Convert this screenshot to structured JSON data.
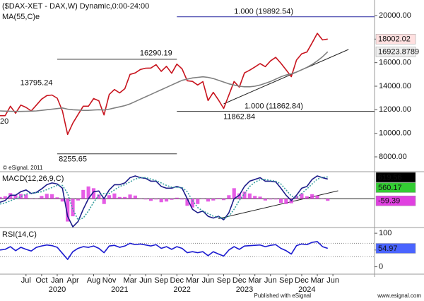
{
  "chart_data": [
    {
      "type": "line",
      "title": "($DAX-XET - DAX,W) Dynamic,0:00-24:00",
      "copyright": "© eSignal, 2011",
      "x": [
        "2019-02",
        "2019-03",
        "2019-04",
        "2019-05",
        "2019-06",
        "2019-07",
        "2019-08",
        "2019-09",
        "2019-10",
        "2019-11",
        "2019-12",
        "2020-01",
        "2020-02",
        "2020-03",
        "2020-04",
        "2020-05",
        "2020-06",
        "2020-07",
        "2020-08",
        "2020-09",
        "2020-10",
        "2020-11",
        "2020-12",
        "2021-01",
        "2021-02",
        "2021-03",
        "2021-04",
        "2021-05",
        "2021-06",
        "2021-07",
        "2021-08",
        "2021-09",
        "2021-10",
        "2021-11",
        "2021-12",
        "2022-01",
        "2022-02",
        "2022-03",
        "2022-04",
        "2022-05",
        "2022-06",
        "2022-07",
        "2022-08",
        "2022-09",
        "2022-10",
        "2022-11",
        "2022-12",
        "2023-01",
        "2023-02",
        "2023-03",
        "2023-04",
        "2023-05",
        "2023-06",
        "2023-07",
        "2023-08",
        "2023-09",
        "2023-10",
        "2023-11",
        "2023-12",
        "2024-01",
        "2024-02",
        "2024-03",
        "2024-04",
        "2024-05"
      ],
      "xlim": [
        "2019-02",
        "2025-02"
      ],
      "ylim": [
        6740,
        21320
      ],
      "yticks": [
        {
          "value": 8000,
          "label": "8000.00"
        },
        {
          "value": 10000,
          "label": "10000.00"
        },
        {
          "value": 12000,
          "label": "12000.00"
        },
        {
          "value": 14000,
          "label": "14000.00"
        },
        {
          "value": 16000,
          "label": "16000.00"
        },
        {
          "value": 18000,
          "label": "18000.00"
        },
        {
          "value": 20000,
          "label": "20000.00"
        }
      ],
      "grid": false,
      "series": [
        {
          "color": "#c8141e",
          "label_fill": "#ffe0e0",
          "values": [
            11500,
            11500,
            12300,
            11700,
            12400,
            12200,
            11900,
            12400,
            12900,
            13200,
            13250,
            12980,
            11900,
            9900,
            10860,
            11590,
            12300,
            12300,
            12950,
            12760,
            11560,
            13300,
            13720,
            13430,
            13790,
            15000,
            15130,
            15420,
            15530,
            15540,
            15830,
            15260,
            15690,
            15100,
            15880,
            15470,
            14460,
            14410,
            14100,
            14390,
            12780,
            13480,
            12830,
            12110,
            13250,
            14400,
            13920,
            15130,
            15360,
            15630,
            15920,
            15660,
            16150,
            16450,
            15950,
            15390,
            14810,
            16220,
            16750,
            16900,
            17680,
            18490,
            17930,
            18002.02
          ]
        },
        {
          "name": "MA(55,C)e",
          "color": "#808080",
          "label_fill": "#eeeeee",
          "values": [
            11900,
            11880,
            11870,
            11860,
            11860,
            11870,
            11880,
            11900,
            11950,
            12000,
            12050,
            12100,
            12150,
            12050,
            12000,
            11980,
            11950,
            11950,
            11980,
            12000,
            11980,
            12050,
            12150,
            12250,
            12350,
            12500,
            12700,
            12900,
            13100,
            13300,
            13500,
            13700,
            13900,
            14100,
            14300,
            14500,
            14600,
            14700,
            14750,
            14800,
            14750,
            14650,
            14500,
            14350,
            14200,
            14100,
            14000,
            13950,
            13950,
            14000,
            14100,
            14250,
            14400,
            14600,
            14800,
            14950,
            15050,
            15200,
            15400,
            15600,
            15850,
            16150,
            16500,
            16923.8789
          ]
        }
      ],
      "hlines": [
        {
          "value": 19892.54,
          "label": "1.000 (19892.54)",
          "x": [
            "2021-12",
            "2025-02"
          ],
          "color": "#2a2aa0",
          "label_x": "2022-11"
        },
        {
          "value": 11862.84,
          "label": "1.000 (11862.84)",
          "x": [
            "2021-12",
            "2025-02"
          ],
          "color": "#333333",
          "label_x": "2023-01"
        },
        {
          "value": 16290.19,
          "x": [
            "2020-01",
            "2021-12"
          ],
          "color": "#333333"
        },
        {
          "value": 8255.65,
          "x": [
            "2020-01",
            "2021-12"
          ],
          "color": "#333333"
        }
      ],
      "annotations": [
        {
          "label": "16290.19",
          "x": "2021-08",
          "y": 16290.19
        },
        {
          "label": "13795.24",
          "x": "2019-09",
          "y": 13795.24
        },
        {
          "label": "8255.65",
          "x": "2020-04",
          "y": 8255.65
        },
        {
          "label": "11862.84",
          "x": "2022-12",
          "y": 11862.84
        },
        {
          "label": "20",
          "x": "2019-02",
          "y": 10500
        }
      ],
      "trendlines": [
        {
          "x": [
            "2022-09",
            "2024-09"
          ],
          "y": [
            12500,
            17120
          ],
          "color": "#222222"
        }
      ]
    },
    {
      "type": "line",
      "title": "MACD(12,26,9,C)",
      "x": [
        "2019-02",
        "2019-03",
        "2019-04",
        "2019-05",
        "2019-06",
        "2019-07",
        "2019-08",
        "2019-09",
        "2019-10",
        "2019-11",
        "2019-12",
        "2020-01",
        "2020-02",
        "2020-03",
        "2020-04",
        "2020-05",
        "2020-06",
        "2020-07",
        "2020-08",
        "2020-09",
        "2020-10",
        "2020-11",
        "2020-12",
        "2021-01",
        "2021-02",
        "2021-03",
        "2021-04",
        "2021-05",
        "2021-06",
        "2021-07",
        "2021-08",
        "2021-09",
        "2021-10",
        "2021-11",
        "2021-12",
        "2022-01",
        "2022-02",
        "2022-03",
        "2022-04",
        "2022-05",
        "2022-06",
        "2022-07",
        "2022-08",
        "2022-09",
        "2022-10",
        "2022-11",
        "2022-12",
        "2023-01",
        "2023-02",
        "2023-03",
        "2023-04",
        "2023-05",
        "2023-06",
        "2023-07",
        "2023-08",
        "2023-09",
        "2023-10",
        "2023-11",
        "2023-12",
        "2024-01",
        "2024-02",
        "2024-03",
        "2024-04",
        "2024-05"
      ],
      "xlim": [
        "2019-02",
        "2025-02"
      ],
      "ylim": [
        -820,
        750
      ],
      "zero_line": 0,
      "series": [
        {
          "type": "bar",
          "color": "#e040e0",
          "label_fill": "#e040e0",
          "values": [
            50,
            70,
            160,
            100,
            140,
            120,
            -10,
            10,
            80,
            140,
            130,
            40,
            -80,
            -650,
            -500,
            -50,
            250,
            350,
            300,
            120,
            -150,
            100,
            150,
            50,
            50,
            120,
            90,
            0,
            -20,
            -60,
            -20,
            -100,
            -80,
            -30,
            30,
            -20,
            -200,
            -250,
            -150,
            0,
            -80,
            -50,
            20,
            -40,
            100,
            300,
            150,
            200,
            150,
            80,
            60,
            -50,
            -20,
            -20,
            -120,
            -150,
            -130,
            80,
            150,
            70,
            130,
            90,
            -10,
            -59.39
          ]
        },
        {
          "color": "#1c1c8a",
          "label_fill": "#33cc33",
          "values": [
            -100,
            -50,
            100,
            100,
            200,
            250,
            150,
            180,
            280,
            400,
            450,
            420,
            300,
            -500,
            -800,
            -650,
            -300,
            0,
            200,
            220,
            0,
            250,
            400,
            400,
            450,
            600,
            650,
            600,
            580,
            500,
            500,
            350,
            300,
            300,
            350,
            300,
            0,
            -300,
            -400,
            -350,
            -500,
            -550,
            -500,
            -600,
            -400,
            0,
            100,
            350,
            500,
            550,
            600,
            500,
            500,
            480,
            300,
            100,
            -50,
            100,
            300,
            350,
            550,
            650,
            600,
            560.17
          ]
        },
        {
          "color": "#3aa0a0",
          "dash": "2 2",
          "values": [
            -150,
            -120,
            -60,
            0,
            60,
            130,
            160,
            170,
            200,
            260,
            320,
            380,
            380,
            150,
            -300,
            -600,
            -550,
            -350,
            -100,
            100,
            150,
            150,
            250,
            350,
            400,
            480,
            560,
            600,
            600,
            560,
            520,
            450,
            380,
            330,
            320,
            320,
            200,
            -50,
            -250,
            -350,
            -420,
            -500,
            -520,
            -560,
            -500,
            -300,
            -50,
            150,
            350,
            470,
            540,
            550,
            520,
            500,
            420,
            250,
            80,
            20,
            150,
            280,
            420,
            560,
            610,
            619.56
          ]
        }
      ],
      "trendlines": [
        {
          "x": [
            "2022-08",
            "2024-07"
          ],
          "y": [
            -569,
            226
          ],
          "color": "#222222"
        }
      ]
    },
    {
      "type": "line",
      "title": "RSI(14,C)",
      "x": [
        "2019-02",
        "2019-03",
        "2019-04",
        "2019-05",
        "2019-06",
        "2019-07",
        "2019-08",
        "2019-09",
        "2019-10",
        "2019-11",
        "2019-12",
        "2020-01",
        "2020-02",
        "2020-03",
        "2020-04",
        "2020-05",
        "2020-06",
        "2020-07",
        "2020-08",
        "2020-09",
        "2020-10",
        "2020-11",
        "2020-12",
        "2021-01",
        "2021-02",
        "2021-03",
        "2021-04",
        "2021-05",
        "2021-06",
        "2021-07",
        "2021-08",
        "2021-09",
        "2021-10",
        "2021-11",
        "2021-12",
        "2022-01",
        "2022-02",
        "2022-03",
        "2022-04",
        "2022-05",
        "2022-06",
        "2022-07",
        "2022-08",
        "2022-09",
        "2022-10",
        "2022-11",
        "2022-12",
        "2023-01",
        "2023-02",
        "2023-03",
        "2023-04",
        "2023-05",
        "2023-06",
        "2023-07",
        "2023-08",
        "2023-09",
        "2023-10",
        "2023-11",
        "2023-12",
        "2024-01",
        "2024-02",
        "2024-03",
        "2024-04",
        "2024-05"
      ],
      "xlim": [
        "2019-02",
        "2025-02"
      ],
      "ylim": [
        -22,
        115
      ],
      "yticks": [
        0,
        50,
        100
      ],
      "levels": [
        70,
        30
      ],
      "series": [
        {
          "color": "#1a1ad0",
          "label_fill": "#4a64ff",
          "values": [
            50,
            52,
            60,
            48,
            58,
            52,
            47,
            58,
            62,
            65,
            63,
            58,
            40,
            22,
            45,
            55,
            60,
            58,
            62,
            55,
            42,
            62,
            64,
            58,
            62,
            70,
            66,
            68,
            65,
            62,
            66,
            55,
            60,
            52,
            60,
            55,
            42,
            45,
            42,
            45,
            33,
            45,
            38,
            32,
            50,
            60,
            52,
            62,
            63,
            64,
            65,
            60,
            64,
            66,
            55,
            48,
            38,
            63,
            68,
            66,
            73,
            75,
            60,
            54.97
          ]
        }
      ],
      "xticks": [
        {
          "value": "2019-07",
          "label": "Jul"
        },
        {
          "value": "2019-10",
          "label": "Oct"
        },
        {
          "value": "2020-01",
          "label": "Jan"
        },
        {
          "value": "2020-04",
          "label": "Apr"
        },
        {
          "value": "2020-08",
          "label": "Aug"
        },
        {
          "value": "2020-11",
          "label": "Nov"
        },
        {
          "value": "2021-03",
          "label": "Mar"
        },
        {
          "value": "2021-06",
          "label": "Jun"
        },
        {
          "value": "2021-09",
          "label": "Sep"
        },
        {
          "value": "2021-12",
          "label": "Dec"
        },
        {
          "value": "2022-03",
          "label": "Mar"
        },
        {
          "value": "2022-06",
          "label": "Jun"
        },
        {
          "value": "2022-09",
          "label": "Sep"
        },
        {
          "value": "2022-12",
          "label": "Dec"
        },
        {
          "value": "2023-03",
          "label": "Mar"
        },
        {
          "value": "2023-06",
          "label": "Jun"
        },
        {
          "value": "2023-09",
          "label": "Sep"
        },
        {
          "value": "2023-12",
          "label": "Dec"
        },
        {
          "value": "2024-03",
          "label": "Mar"
        },
        {
          "value": "2024-06",
          "label": "Jun"
        }
      ],
      "xtick_years": [
        {
          "value": "2020-01",
          "label": "2020"
        },
        {
          "value": "2021-01",
          "label": "2021"
        },
        {
          "value": "2022-01",
          "label": "2022"
        },
        {
          "value": "2023-01",
          "label": "2023"
        },
        {
          "value": "2024-01",
          "label": "2024"
        }
      ],
      "footer": {
        "left": "Published with eSignal",
        "right": "www.esignal.com"
      }
    }
  ]
}
